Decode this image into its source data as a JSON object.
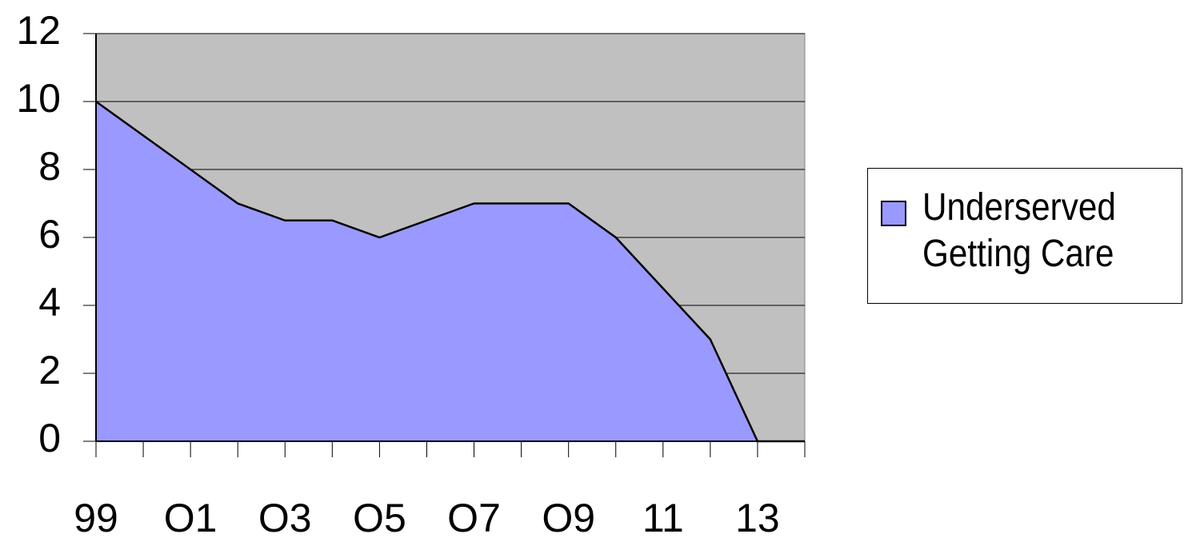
{
  "chart_data": {
    "type": "area",
    "categories": [
      "99",
      null,
      "O1",
      null,
      "O3",
      null,
      "O5",
      null,
      "O7",
      null,
      "O9",
      null,
      "11",
      null,
      "13",
      null
    ],
    "series": [
      {
        "name": "Underserved Getting Care",
        "color": "#9999ff",
        "values": [
          10,
          9,
          8,
          7,
          6.5,
          6.5,
          6,
          6.5,
          7,
          7,
          7,
          6,
          4.5,
          3,
          0,
          0
        ]
      }
    ],
    "ylim": [
      0,
      12
    ],
    "yticks": [
      0,
      2,
      4,
      6,
      8,
      10,
      12
    ],
    "grid": true,
    "plot_background": "#c0c0c0",
    "legend": "right"
  }
}
